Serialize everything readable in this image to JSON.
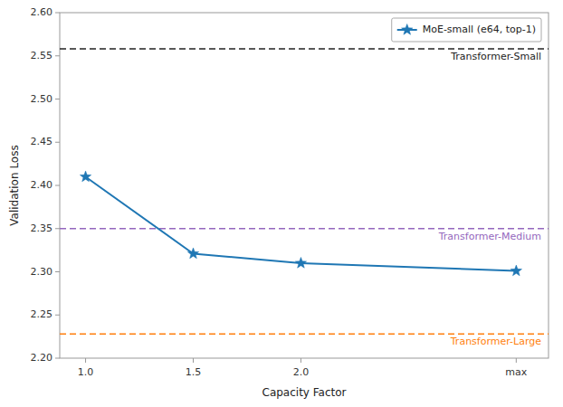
{
  "chart_data": {
    "type": "line",
    "xlabel": "Capacity Factor",
    "ylabel": "Validation Loss",
    "xlim": [
      0.88,
      3.15
    ],
    "ylim": [
      2.2,
      2.6
    ],
    "xticks": [
      {
        "value": 1.0,
        "label": "1.0"
      },
      {
        "value": 1.5,
        "label": "1.5"
      },
      {
        "value": 2.0,
        "label": "2.0"
      },
      {
        "value": 3.0,
        "label": "max"
      }
    ],
    "yticks": [
      {
        "value": 2.2,
        "label": "2.20"
      },
      2.25,
      {
        "value": 2.3,
        "label": "2.30"
      },
      2.35,
      {
        "value": 2.4,
        "label": "2.40"
      },
      2.45,
      {
        "value": 2.5,
        "label": "2.50"
      },
      2.55,
      {
        "value": 2.6,
        "label": "2.60"
      }
    ],
    "x": [
      1.0,
      1.5,
      2.0,
      3.0
    ],
    "series": [
      {
        "name": "MoE-small (e64, top-1)",
        "color": "#1f77b4",
        "marker": "star",
        "line_style": "solid",
        "values": [
          2.41,
          2.321,
          2.31,
          2.301
        ]
      }
    ],
    "reference_lines": [
      {
        "label": "Transformer-Small",
        "value": 2.558,
        "color": "#222222",
        "line_style": "dashed"
      },
      {
        "label": "Transformer-Medium",
        "value": 2.35,
        "color": "#9467bd",
        "line_style": "dashed"
      },
      {
        "label": "Transformer-Large",
        "value": 2.228,
        "color": "#ff7f0e",
        "line_style": "dashed"
      }
    ],
    "legend": "upper right",
    "grid": false
  }
}
